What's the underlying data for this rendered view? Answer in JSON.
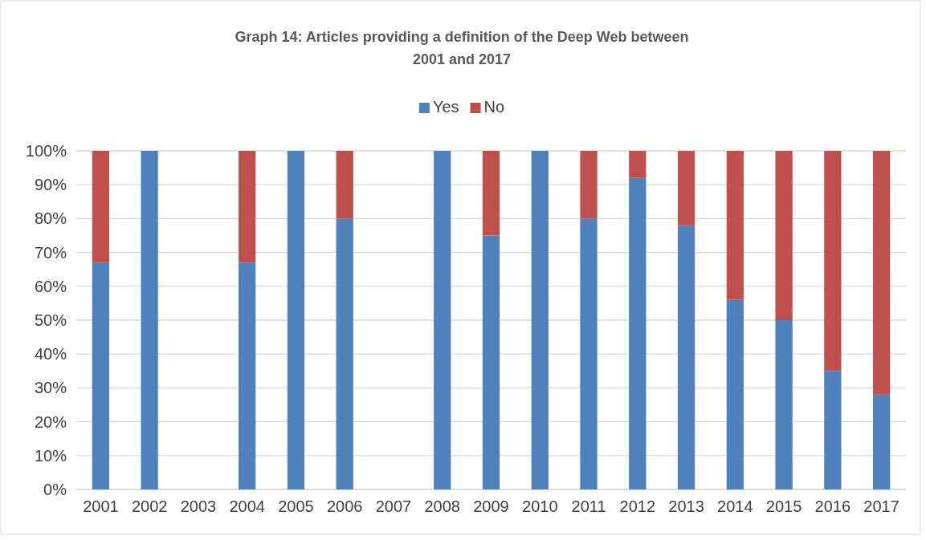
{
  "chart_data": {
    "type": "bar",
    "title": "Graph 14: Articles providing a definition of the Deep Web between 2001 and 2017",
    "categories": [
      "2001",
      "2002",
      "2003",
      "2004",
      "2005",
      "2006",
      "2007",
      "2008",
      "2009",
      "2010",
      "2011",
      "2012",
      "2013",
      "2014",
      "2015",
      "2016",
      "2017"
    ],
    "series": [
      {
        "name": "Yes",
        "color": "#4f81bd",
        "values": [
          67,
          100,
          null,
          67,
          100,
          80,
          null,
          100,
          75,
          100,
          80,
          92,
          78,
          56,
          50,
          35,
          28
        ]
      },
      {
        "name": "No",
        "color": "#c0504d",
        "values": [
          33,
          0,
          null,
          33,
          0,
          20,
          null,
          0,
          25,
          0,
          20,
          8,
          22,
          44,
          50,
          65,
          72
        ]
      }
    ],
    "stacked": true,
    "ylim": [
      0,
      100
    ],
    "yticks": [
      {
        "value": 0,
        "label": "0%"
      },
      {
        "value": 10,
        "label": "10%"
      },
      {
        "value": 20,
        "label": "20%"
      },
      {
        "value": 30,
        "label": "30%"
      },
      {
        "value": 40,
        "label": "40%"
      },
      {
        "value": 50,
        "label": "50%"
      },
      {
        "value": 60,
        "label": "60%"
      },
      {
        "value": 70,
        "label": "70%"
      },
      {
        "value": 80,
        "label": "80%"
      },
      {
        "value": 90,
        "label": "90%"
      },
      {
        "value": 100,
        "label": "100%"
      }
    ],
    "grid": "y",
    "legend": "top"
  }
}
